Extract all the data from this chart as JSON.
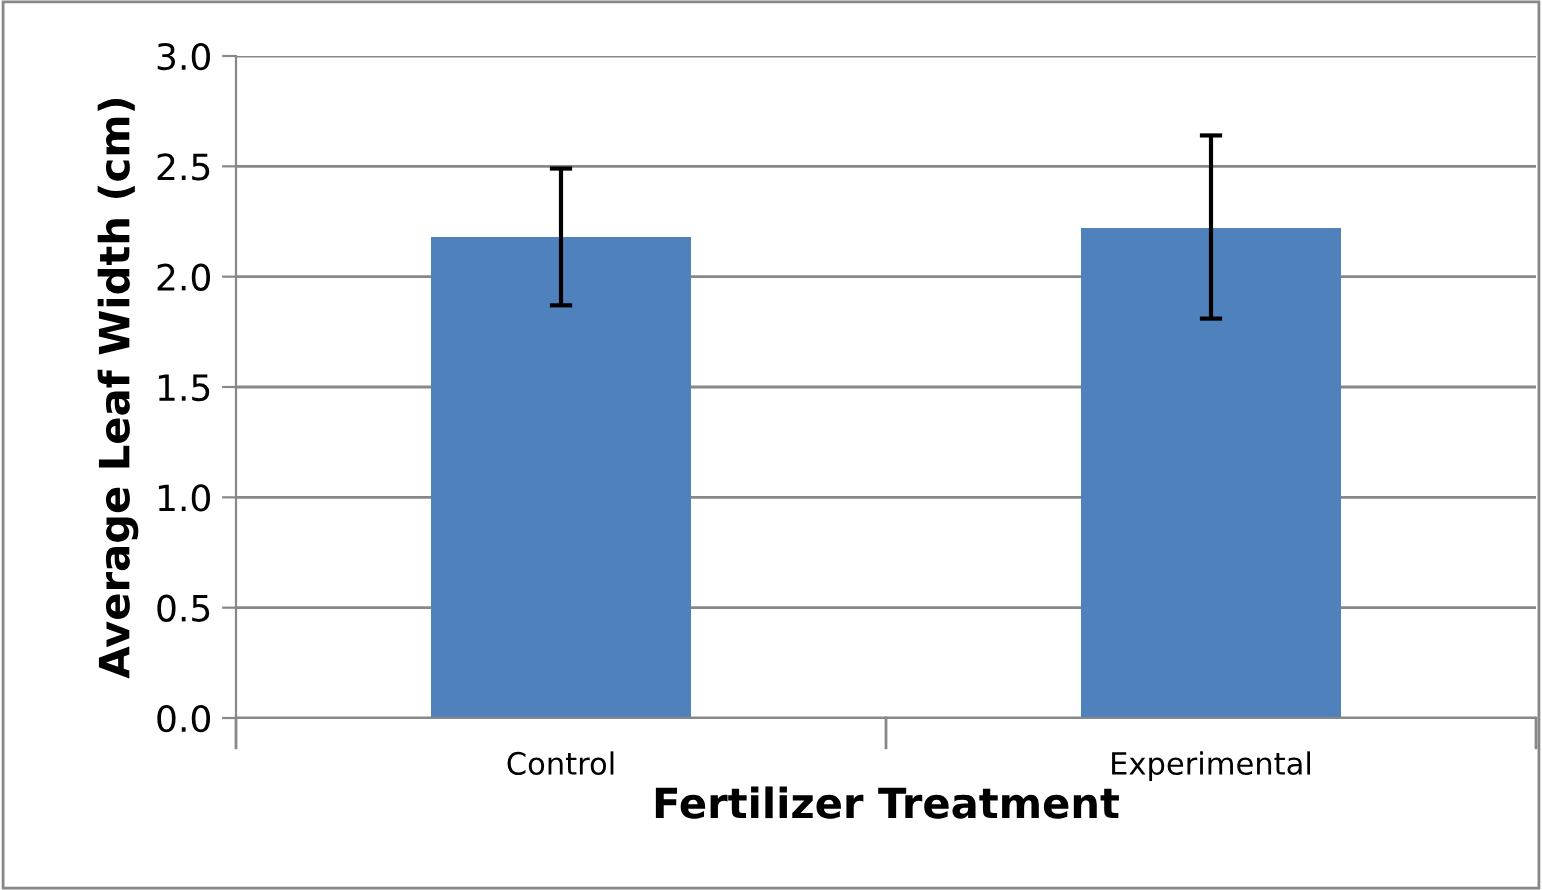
{
  "chart_data": {
    "type": "bar",
    "xlabel": "Fertilizer Treatment",
    "ylabel": "Average Leaf Width (cm)",
    "categories": [
      "Control",
      "Experimental"
    ],
    "values": [
      2.18,
      2.22
    ],
    "errors": [
      [
        1.87,
        2.49
      ],
      [
        1.81,
        2.64
      ]
    ],
    "color": "#4f81bd",
    "ylim": [
      0,
      3.0
    ],
    "yticks": [
      {
        "value": 0,
        "label": "0.0"
      },
      {
        "value": 0.5,
        "label": "0.5"
      },
      {
        "value": 1.0,
        "label": "1.0"
      },
      {
        "value": 1.5,
        "label": "1.5"
      },
      {
        "value": 2.0,
        "label": "2.0"
      },
      {
        "value": 2.5,
        "label": "2.5"
      },
      {
        "value": 3.0,
        "label": "3.0"
      }
    ],
    "grid": "y"
  }
}
